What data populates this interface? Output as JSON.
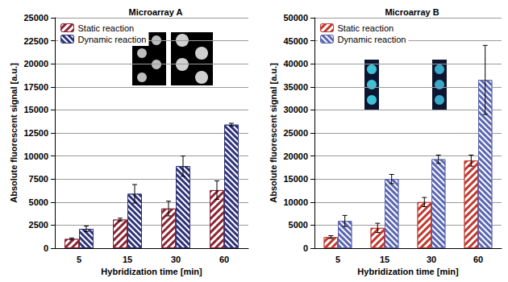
{
  "chart_data": [
    {
      "type": "bar",
      "title": "Microarray A",
      "x_label": "Hybridization time [min]",
      "y_label": "Absolute fluorescent signal [a.u.]",
      "categories": [
        "5",
        "15",
        "30",
        "60"
      ],
      "series": [
        {
          "name": "Static reaction",
          "color": "#8b2535",
          "values": [
            1000,
            3100,
            4300,
            6300
          ],
          "errors": [
            100,
            150,
            800,
            1000
          ]
        },
        {
          "name": "Dynamic reaction",
          "color": "#2e3278",
          "values": [
            2100,
            5900,
            8900,
            13400
          ],
          "errors": [
            300,
            1000,
            1100,
            150
          ]
        }
      ],
      "ylim": [
        0,
        25000
      ],
      "yticks": [
        0,
        2500,
        5000,
        7500,
        10000,
        12500,
        15000,
        17500,
        20000,
        22500,
        25000
      ],
      "grid": true,
      "legend": "top-left"
    },
    {
      "type": "bar",
      "title": "Microarray B",
      "x_label": "Hybridization time [min]",
      "y_label": "Absolute fluorescent signal [a.u.]",
      "categories": [
        "5",
        "15",
        "30",
        "60"
      ],
      "series": [
        {
          "name": "Static reaction",
          "color": "#c0392f",
          "values": [
            2400,
            4400,
            10000,
            19000
          ],
          "errors": [
            300,
            1000,
            1000,
            1200
          ]
        },
        {
          "name": "Dynamic reaction",
          "color": "#5a66b0",
          "values": [
            5900,
            15000,
            19300,
            36500
          ],
          "errors": [
            1200,
            1000,
            900,
            7500
          ]
        }
      ],
      "ylim": [
        0,
        50000
      ],
      "yticks": [
        0,
        5000,
        10000,
        15000,
        20000,
        25000,
        30000,
        35000,
        40000,
        45000,
        50000
      ],
      "grid": true,
      "legend": "top-left"
    }
  ]
}
